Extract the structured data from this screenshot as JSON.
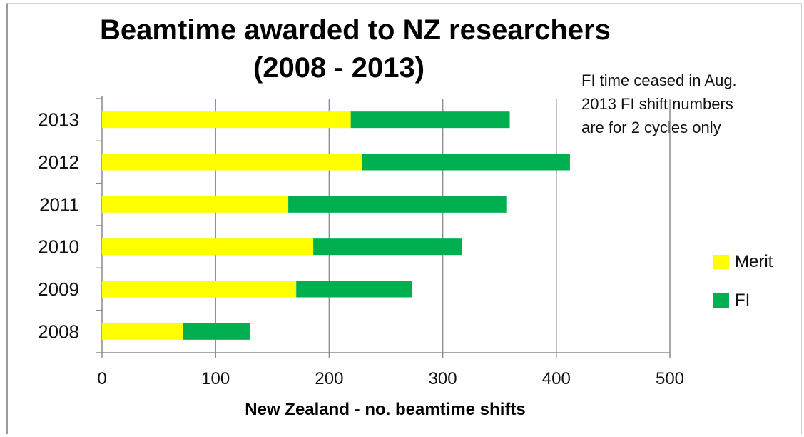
{
  "chart_data": {
    "type": "bar",
    "orientation": "horizontal",
    "stacked": true,
    "title_line1": "Beamtime awarded to NZ researchers",
    "title_line2": "(2008 - 2013)",
    "annotation": [
      "FI time ceased in Aug.",
      "2013 FI shift numbers",
      "are for 2 cycles only"
    ],
    "xlabel": "New Zealand - no. beamtime shifts",
    "ylabel": "",
    "xlim": [
      0,
      500
    ],
    "xticks": [
      "0",
      "100",
      "200",
      "300",
      "400",
      "500"
    ],
    "grid": true,
    "legend_position": "right",
    "categories": [
      "2008",
      "2009",
      "2010",
      "2011",
      "2012",
      "2013"
    ],
    "series": [
      {
        "name": "Merit",
        "color": "#ffff00",
        "values": [
          71,
          171,
          186,
          164,
          229,
          219
        ]
      },
      {
        "name": "FI",
        "color": "#00b050",
        "values": [
          59,
          102,
          131,
          192,
          183,
          140
        ]
      }
    ]
  }
}
